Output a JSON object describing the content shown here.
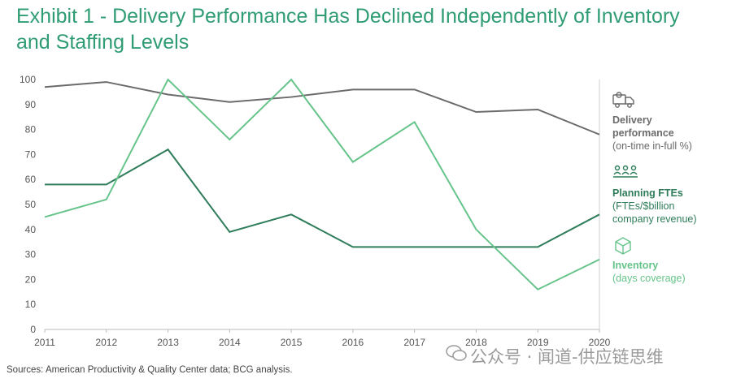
{
  "title": "Exhibit 1 - Delivery Performance Has Declined Independently of Inventory and Staffing Levels",
  "colors": {
    "delivery": "#6b6b6b",
    "planning": "#2f7d5b",
    "inventory": "#66c48a",
    "title": "#2f9c74"
  },
  "chart_data": {
    "type": "line",
    "x": [
      "2011",
      "2012",
      "2013",
      "2014",
      "2015",
      "2016",
      "2017",
      "2018",
      "2019",
      "2020"
    ],
    "y_ticks": [
      0,
      10,
      20,
      30,
      40,
      50,
      60,
      70,
      80,
      90,
      100
    ],
    "ylim": [
      0,
      100
    ],
    "series": [
      {
        "name": "Delivery performance",
        "key": "delivery",
        "values": [
          97,
          99,
          94,
          91,
          93,
          96,
          96,
          87,
          88,
          78
        ]
      },
      {
        "name": "Planning FTEs",
        "key": "planning",
        "values": [
          58,
          58,
          72,
          39,
          46,
          33,
          33,
          33,
          33,
          46
        ]
      },
      {
        "name": "Inventory",
        "key": "inventory",
        "values": [
          45,
          52,
          100,
          76,
          100,
          67,
          83,
          40,
          16,
          28
        ]
      }
    ]
  },
  "legend": {
    "delivery": {
      "name_line1": "Delivery",
      "name_line2": "performance",
      "sub": "(on-time in-full %)",
      "icon": "truck-icon"
    },
    "planning": {
      "name": "Planning FTEs",
      "sub_line1": "(FTEs/$billion",
      "sub_line2": "company revenue)",
      "icon": "people-icon"
    },
    "inventory": {
      "name": "Inventory",
      "sub": "(days coverage)",
      "icon": "box-icon"
    }
  },
  "source": "Sources: American Productivity & Quality Center data; BCG analysis.",
  "watermark": "公众号 · 闻道-供应链思维"
}
